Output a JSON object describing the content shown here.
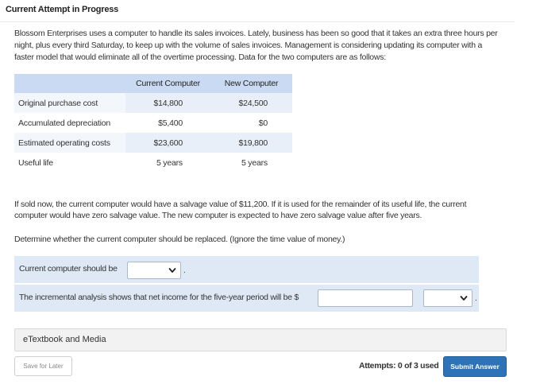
{
  "header": {
    "title": "Current Attempt in Progress"
  },
  "intro": "Blossom Enterprises uses a computer to handle its sales invoices. Lately, business has been so good that it takes an extra three hours per night, plus every third Saturday, to keep up with the volume of sales invoices. Management is considering updating its computer with a faster model that would eliminate all of the overtime processing. Data for the two computers are as follows:",
  "table": {
    "columns": [
      "",
      "Current Computer",
      "New Computer"
    ],
    "rows": [
      {
        "label": "Original purchase cost",
        "current": "$14,800",
        "new": "$24,500"
      },
      {
        "label": "Accumulated depreciation",
        "current": "$5,400",
        "new": "$0"
      },
      {
        "label": "Estimated operating costs",
        "current": "$23,600",
        "new": "$19,800"
      },
      {
        "label": "Useful life",
        "current": "5 years",
        "new": "5 years"
      }
    ]
  },
  "paragraph1": "If sold now, the current computer would have a salvage value of $11,200. If it is used for the remainder of its useful life, the current computer would have zero salvage value. The new computer is expected to have zero salvage value after five years.",
  "paragraph2": "Determine whether the current computer should be replaced. (Ignore the time value of money.)",
  "question1": {
    "label": "Current computer should be",
    "selected": "",
    "suffix": "."
  },
  "question2": {
    "label": "The incremental analysis shows that net income for the five-year period will be $",
    "input_value": "",
    "selected": "",
    "suffix": "."
  },
  "media": {
    "label": "eTextbook and Media"
  },
  "footer": {
    "save_label": "Save for Later",
    "attempts_text": "Attempts: 0 of 3 used",
    "submit_label": "Submit Answer"
  },
  "colors": {
    "accent": "#2e72b8",
    "table_header": "#c9daf2",
    "answer_bg": "#dfe8f5"
  },
  "icons": {
    "dropdown": "chevron-down-icon"
  }
}
